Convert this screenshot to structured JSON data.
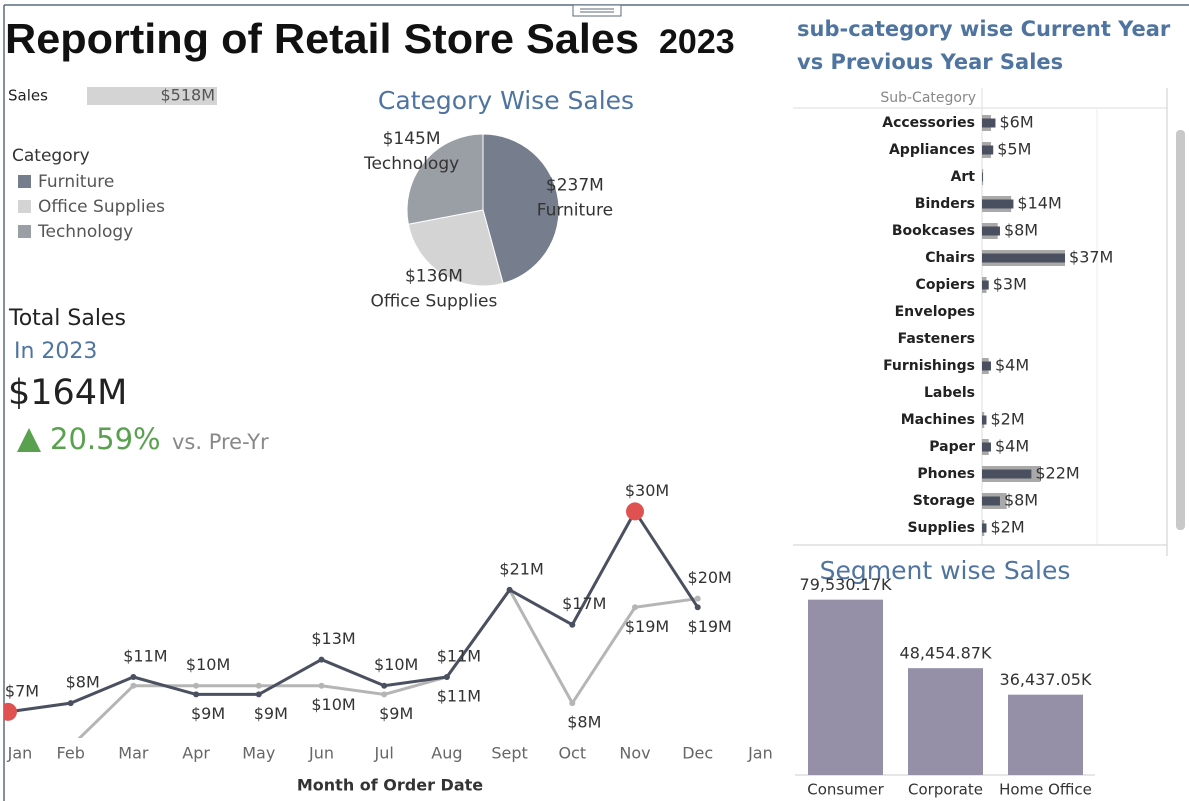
{
  "header": {
    "title": "Reporting of Retail Store Sales",
    "year": "2023"
  },
  "kpi": {
    "label": "Total Sales",
    "period": "In 2023",
    "value": "$164M",
    "change": "20.59%",
    "comparison": "vs. Pre-Yr"
  },
  "chart_data": [
    {
      "type": "bar",
      "orientation": "horizontal",
      "title": "Sales",
      "values": [
        518
      ],
      "value_labels": [
        "$518M"
      ],
      "color": "#d4d4d4",
      "xlim": [
        0,
        518
      ]
    },
    {
      "type": "pie",
      "title": "Category Wise Sales",
      "legend_title": "Category",
      "categories": [
        "Furniture",
        "Office Supplies",
        "Technology"
      ],
      "values": [
        237,
        136,
        145
      ],
      "value_labels": [
        "$237M",
        "$136M",
        "$145M"
      ],
      "colors": [
        "#767d8c",
        "#d4d4d4",
        "#9a9ea5"
      ]
    },
    {
      "type": "line",
      "x_label": "Month of Order Date",
      "categories": [
        "Jan",
        "Feb",
        "Mar",
        "Apr",
        "May",
        "Jun",
        "Jul",
        "Aug",
        "Sept",
        "Oct",
        "Nov",
        "Dec",
        "Jan"
      ],
      "series": [
        {
          "color": "#4a5060",
          "values": [
            7,
            8,
            11,
            9,
            9,
            13,
            10,
            11,
            21,
            17,
            30,
            19,
            null
          ],
          "value_labels": [
            "$7M",
            "$8M",
            "$11M",
            "$9M",
            "$9M",
            "$13M",
            "$10M",
            "$11M",
            "$21M",
            "$17M",
            "$30M",
            "$19M",
            null
          ]
        },
        {
          "color": "#b5b5b5",
          "values": [
            3,
            3,
            10,
            10,
            10,
            10,
            9,
            11,
            21,
            8,
            19,
            20,
            null
          ],
          "value_labels": [
            null,
            null,
            null,
            "$10M",
            null,
            "$10M",
            "$9M",
            "$11M",
            null,
            "$8M",
            "$19M",
            "$20M",
            null
          ]
        }
      ],
      "ylim": [
        4,
        32
      ],
      "highlight_color": "#e05252"
    },
    {
      "type": "bar",
      "orientation": "horizontal",
      "title": [
        "sub-category wise Current Year",
        "vs Previous Year Sales"
      ],
      "y_label": "Sub-Category",
      "categories": [
        "Accessories",
        "Appliances",
        "Art",
        "Binders",
        "Bookcases",
        "Chairs",
        "Copiers",
        "Envelopes",
        "Fasteners",
        "Furnishings",
        "Labels",
        "Machines",
        "Paper",
        "Phones",
        "Storage",
        "Supplies"
      ],
      "series": [
        {
          "color": "#a9a9a9",
          "values": [
            4,
            4,
            0.5,
            13,
            7,
            37,
            2,
            0,
            0,
            3,
            0,
            1,
            3,
            26,
            11,
            1
          ]
        },
        {
          "color": "#4a5060",
          "values": [
            6,
            5,
            0.4,
            14,
            8,
            37,
            3,
            0,
            0,
            4,
            0,
            2,
            4,
            22,
            8,
            2
          ],
          "value_labels": [
            "$6M",
            "$5M",
            null,
            "$14M",
            "$8M",
            "$37M",
            "$3M",
            null,
            null,
            "$4M",
            null,
            "$2M",
            "$4M",
            "$22M",
            "$8M",
            "$2M"
          ]
        }
      ],
      "xlim": [
        0,
        82
      ]
    },
    {
      "type": "bar",
      "title": "Segment wise Sales",
      "categories": [
        "Consumer",
        "Corporate",
        "Home Office"
      ],
      "values": [
        79530.17,
        48454.87,
        36437.05
      ],
      "value_labels": [
        "79,530.17K",
        "48,454.87K",
        "36,437.05K"
      ],
      "color": "#9590a8",
      "ylim": [
        0,
        83000
      ]
    }
  ]
}
